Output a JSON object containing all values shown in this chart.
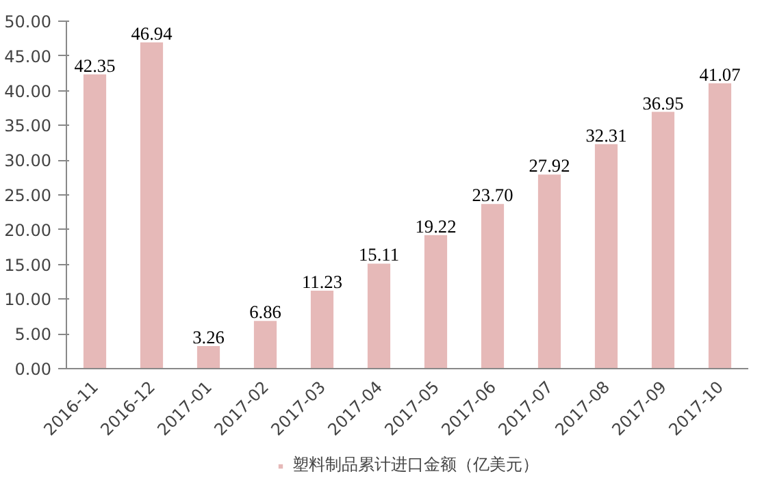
{
  "chart_data": {
    "type": "bar",
    "categories": [
      "2016-11",
      "2016-12",
      "2017-01",
      "2017-02",
      "2017-03",
      "2017-04",
      "2017-05",
      "2017-06",
      "2017-07",
      "2017-08",
      "2017-09",
      "2017-10"
    ],
    "series": [
      {
        "name": "塑料制品累计进口金额（亿美元）",
        "color": "#e6b9b8",
        "values": [
          42.35,
          46.94,
          3.26,
          6.86,
          11.23,
          15.11,
          19.22,
          23.7,
          27.92,
          32.31,
          36.95,
          41.07
        ]
      }
    ],
    "ylim": [
      0,
      50
    ],
    "yticks": [
      {
        "value": 0,
        "label": "0.00"
      },
      {
        "value": 5,
        "label": "5.00"
      },
      {
        "value": 10,
        "label": "10.00"
      },
      {
        "value": 15,
        "label": "15.00"
      },
      {
        "value": 20,
        "label": "20.00"
      },
      {
        "value": 25,
        "label": "25.00"
      },
      {
        "value": 30,
        "label": "30.00"
      },
      {
        "value": 35,
        "label": "35.00"
      },
      {
        "value": 40,
        "label": "40.00"
      },
      {
        "value": 45,
        "label": "45.00"
      },
      {
        "value": 50,
        "label": "50.00"
      }
    ],
    "value_labels": [
      "42.35",
      "46.94",
      "3.26",
      "6.86",
      "11.23",
      "15.11",
      "19.22",
      "23.70",
      "27.92",
      "32.31",
      "36.95",
      "41.07"
    ],
    "grid": false,
    "legend": "bottom"
  }
}
